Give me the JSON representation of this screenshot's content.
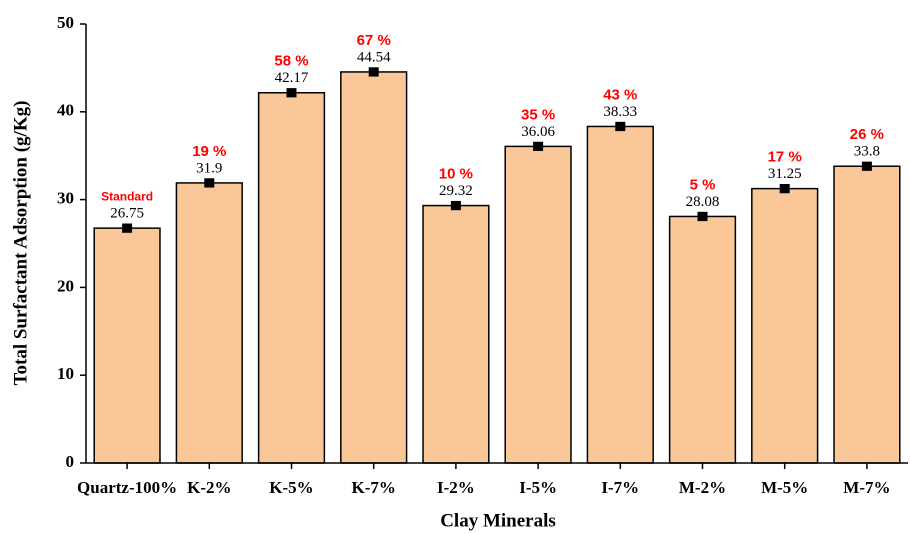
{
  "chart_data": {
    "type": "bar",
    "x_label": "Clay Minerals",
    "y_label": "Total Surfactant Adsorption (g/Kg)",
    "categories": [
      "Quartz-100%",
      "K-2%",
      "K-5%",
      "K-7%",
      "I-2%",
      "I-5%",
      "I-7%",
      "M-2%",
      "M-5%",
      "M-7%"
    ],
    "values": [
      26.75,
      31.9,
      42.17,
      44.54,
      29.32,
      36.06,
      38.33,
      28.08,
      31.25,
      33.8
    ],
    "errors": [
      0.3,
      0.3,
      0.3,
      0.3,
      0.3,
      0.3,
      0.3,
      0.3,
      0.3,
      0.3
    ],
    "annotations": [
      "Standard",
      "19 %",
      "58 %",
      "67 %",
      "10 %",
      "35 %",
      "43 %",
      "5 %",
      "17 %",
      "26 %"
    ],
    "color": "#fac898",
    "annotation_color": "#ff0000",
    "ylim": [
      0,
      50
    ],
    "yticks": [
      0,
      10,
      20,
      30,
      40,
      50
    ],
    "grid": false
  }
}
